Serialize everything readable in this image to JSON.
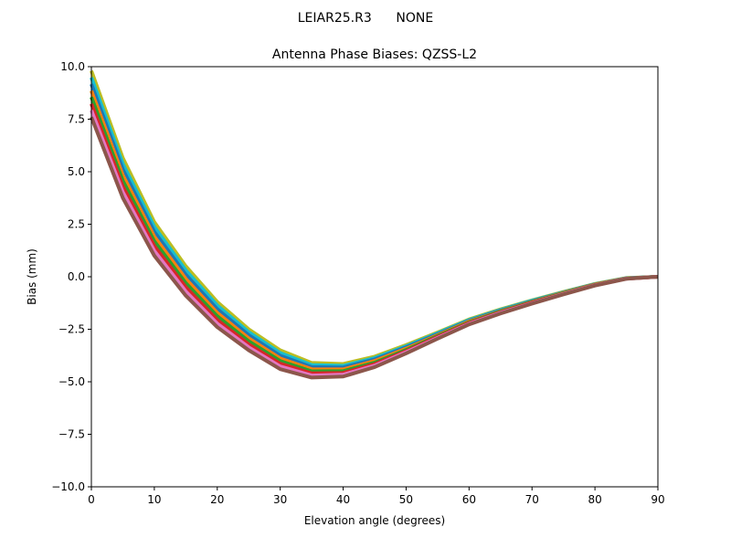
{
  "chart_data": {
    "type": "line",
    "suptitle": "LEIAR25.R3      NONE",
    "title": "Antenna Phase Biases: QZSS-L2",
    "xlabel": "Elevation angle (degrees)",
    "ylabel": "Bias (mm)",
    "xlim": [
      0,
      90
    ],
    "ylim": [
      -10,
      10
    ],
    "xticks": [
      0,
      10,
      20,
      30,
      40,
      50,
      60,
      70,
      80,
      90
    ],
    "xtick_labels": [
      "0",
      "10",
      "20",
      "30",
      "40",
      "50",
      "60",
      "70",
      "80",
      "90"
    ],
    "yticks": [
      10,
      7.5,
      5,
      2.5,
      0,
      -2.5,
      -5,
      -7.5,
      -10
    ],
    "ytick_labels": [
      "10.0",
      "7.5",
      "5.0",
      "2.5",
      "0.0",
      "−2.5",
      "−5.0",
      "−7.5",
      "−10.0"
    ],
    "grid": false,
    "x": [
      0,
      5,
      10,
      15,
      20,
      25,
      30,
      35,
      40,
      45,
      50,
      55,
      60,
      65,
      70,
      75,
      80,
      85,
      90
    ],
    "series": [
      {
        "color": "#bcbd22",
        "values": [
          9.8,
          5.65,
          2.6,
          0.5,
          -1.2,
          -2.5,
          -3.5,
          -4.1,
          -4.15,
          -3.8,
          -3.25,
          -2.65,
          -2.03,
          -1.55,
          -1.12,
          -0.72,
          -0.34,
          -0.06,
          0
        ]
      },
      {
        "color": "#17becf",
        "values": [
          9.48,
          5.37,
          2.37,
          0.3,
          -1.37,
          -2.64,
          -3.63,
          -4.2,
          -4.24,
          -3.87,
          -3.31,
          -2.69,
          -2.06,
          -1.58,
          -1.14,
          -0.74,
          -0.35,
          -0.07,
          0
        ]
      },
      {
        "color": "#1f77b4",
        "values": [
          9.17,
          5.11,
          2.14,
          0.1,
          -1.54,
          -2.78,
          -3.76,
          -4.3,
          -4.32,
          -3.94,
          -3.36,
          -2.74,
          -2.1,
          -1.61,
          -1.17,
          -0.75,
          -0.36,
          -0.07,
          0
        ]
      },
      {
        "color": "#ff7f0e",
        "values": [
          8.85,
          4.83,
          1.91,
          -0.1,
          -1.72,
          -2.93,
          -3.89,
          -4.4,
          -4.41,
          -4.01,
          -3.42,
          -2.78,
          -2.13,
          -1.64,
          -1.19,
          -0.77,
          -0.37,
          -0.08,
          0
        ]
      },
      {
        "color": "#2ca02c",
        "values": [
          8.55,
          4.57,
          1.69,
          -0.3,
          -1.88,
          -3.07,
          -4.01,
          -4.5,
          -4.49,
          -4.09,
          -3.48,
          -2.82,
          -2.17,
          -1.66,
          -1.21,
          -0.79,
          -0.39,
          -0.08,
          0
        ]
      },
      {
        "color": "#d62728",
        "values": [
          8.23,
          4.29,
          1.46,
          -0.5,
          -2.06,
          -3.22,
          -4.14,
          -4.6,
          -4.58,
          -4.16,
          -3.54,
          -2.86,
          -2.2,
          -1.69,
          -1.23,
          -0.81,
          -0.4,
          -0.09,
          0
        ]
      },
      {
        "color": "#e377c2",
        "values": [
          7.92,
          4.03,
          1.23,
          -0.7,
          -2.23,
          -3.36,
          -4.27,
          -4.7,
          -4.66,
          -4.23,
          -3.59,
          -2.91,
          -2.24,
          -1.72,
          -1.26,
          -0.82,
          -0.41,
          -0.09,
          0
        ]
      },
      {
        "color": "#8c564b",
        "values": [
          7.6,
          3.75,
          1.0,
          -0.9,
          -2.4,
          -3.5,
          -4.4,
          -4.8,
          -4.75,
          -4.3,
          -3.65,
          -2.95,
          -2.27,
          -1.75,
          -1.28,
          -0.84,
          -0.42,
          -0.1,
          0
        ]
      }
    ]
  }
}
